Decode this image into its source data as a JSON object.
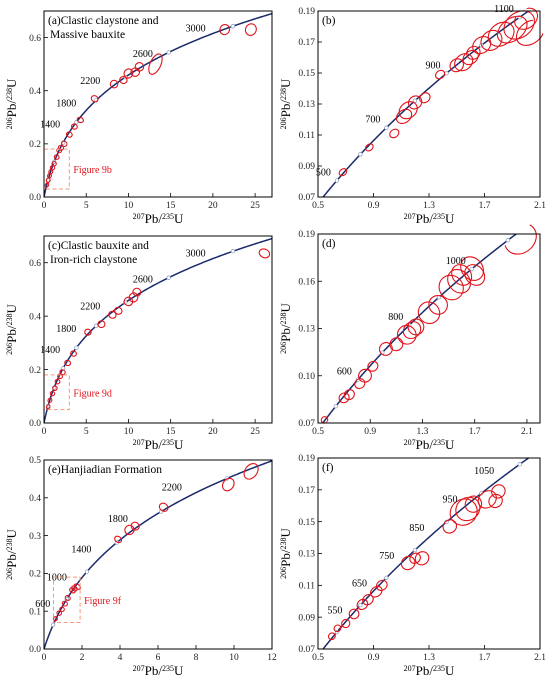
{
  "colors": {
    "concordia": "#1a2a6c",
    "ellipse": "#e0141c",
    "inset": "#f29a7a",
    "axis": "#000000",
    "marker": "#ffffff"
  },
  "chart_data": [
    {
      "type": "scatter",
      "id": "a",
      "title": "(a)Clastic claystone and",
      "title2": "Massive bauxite",
      "xlim": [
        0,
        27
      ],
      "ylim": [
        0,
        0.7
      ],
      "xticks": [
        0,
        5,
        10,
        15,
        20,
        25
      ],
      "yticks": [
        0.0,
        0.2,
        0.4,
        0.6
      ],
      "tick_labels_x": [
        "0",
        "5",
        "10",
        "15",
        "20",
        "25"
      ],
      "tick_labels_y": [
        "0.0",
        "0.2",
        "0.4",
        "0.6"
      ],
      "xlabel": "207Pb/235U",
      "ylabel": "206Pb/238U",
      "concordia_age_range": [
        0,
        3500
      ],
      "age_labels": [
        "1400",
        "1800",
        "2200",
        "2600",
        "3000"
      ],
      "inset_box": {
        "x": [
          0,
          3
        ],
        "y": [
          0.03,
          0.18
        ],
        "label": "Figure 9b"
      },
      "ellipses": [
        {
          "x": 0.35,
          "y": 0.045,
          "rx": 0.15,
          "ry": 0.006
        },
        {
          "x": 0.5,
          "y": 0.063,
          "rx": 0.16,
          "ry": 0.007
        },
        {
          "x": 0.65,
          "y": 0.08,
          "rx": 0.17,
          "ry": 0.007
        },
        {
          "x": 0.8,
          "y": 0.095,
          "rx": 0.18,
          "ry": 0.007
        },
        {
          "x": 1.0,
          "y": 0.11,
          "rx": 0.2,
          "ry": 0.008
        },
        {
          "x": 1.2,
          "y": 0.125,
          "rx": 0.22,
          "ry": 0.008
        },
        {
          "x": 1.5,
          "y": 0.15,
          "rx": 0.25,
          "ry": 0.009
        },
        {
          "x": 1.8,
          "y": 0.175,
          "rx": 0.25,
          "ry": 0.009
        },
        {
          "x": 2.0,
          "y": 0.185,
          "rx": 0.28,
          "ry": 0.01
        },
        {
          "x": 2.4,
          "y": 0.2,
          "rx": 0.3,
          "ry": 0.01
        },
        {
          "x": 3.0,
          "y": 0.235,
          "rx": 0.3,
          "ry": 0.011
        },
        {
          "x": 3.6,
          "y": 0.265,
          "rx": 0.3,
          "ry": 0.011
        },
        {
          "x": 4.3,
          "y": 0.29,
          "rx": 0.3,
          "ry": 0.012
        },
        {
          "x": 6.0,
          "y": 0.37,
          "rx": 0.35,
          "ry": 0.013
        },
        {
          "x": 8.3,
          "y": 0.425,
          "rx": 0.45,
          "ry": 0.014
        },
        {
          "x": 9.4,
          "y": 0.44,
          "rx": 0.4,
          "ry": 0.014
        },
        {
          "x": 10.0,
          "y": 0.465,
          "rx": 0.55,
          "ry": 0.016
        },
        {
          "x": 10.8,
          "y": 0.47,
          "rx": 0.5,
          "ry": 0.016
        },
        {
          "x": 11.3,
          "y": 0.49,
          "rx": 0.5,
          "ry": 0.016
        },
        {
          "x": 13.2,
          "y": 0.5,
          "rx": 1.3,
          "ry": 0.02
        },
        {
          "x": 21.4,
          "y": 0.63,
          "rx": 0.6,
          "ry": 0.018
        },
        {
          "x": 24.5,
          "y": 0.63,
          "rx": 0.7,
          "ry": 0.02
        }
      ]
    },
    {
      "type": "scatter",
      "id": "b",
      "title": "(b)",
      "title2": "",
      "xlim": [
        0.5,
        2.1
      ],
      "ylim": [
        0.07,
        0.19
      ],
      "xticks": [
        0.5,
        0.9,
        1.3,
        1.7,
        2.1
      ],
      "yticks": [
        0.07,
        0.09,
        0.11,
        0.13,
        0.15,
        0.17,
        0.19
      ],
      "tick_labels_x": [
        "0.5",
        "0.9",
        "1.3",
        "1.7",
        "2.1"
      ],
      "tick_labels_y": [
        "0.07",
        "0.09",
        "0.11",
        "0.13",
        "0.15",
        "0.17",
        "0.19"
      ],
      "xlabel": "207Pb/235U",
      "ylabel": "206Pb/238U",
      "concordia_age_range": [
        300,
        1250
      ],
      "age_labels": [
        "500",
        "700",
        "900",
        "1100"
      ],
      "ellipses": [
        {
          "x": 0.68,
          "y": 0.086,
          "rx": 0.03,
          "ry": 0.002
        },
        {
          "x": 0.87,
          "y": 0.102,
          "rx": 0.03,
          "ry": 0.002
        },
        {
          "x": 1.05,
          "y": 0.111,
          "rx": 0.035,
          "ry": 0.0025
        },
        {
          "x": 1.12,
          "y": 0.122,
          "rx": 0.06,
          "ry": 0.004
        },
        {
          "x": 1.15,
          "y": 0.126,
          "rx": 0.07,
          "ry": 0.005
        },
        {
          "x": 1.2,
          "y": 0.131,
          "rx": 0.05,
          "ry": 0.004
        },
        {
          "x": 1.27,
          "y": 0.134,
          "rx": 0.04,
          "ry": 0.003
        },
        {
          "x": 1.38,
          "y": 0.149,
          "rx": 0.035,
          "ry": 0.0025
        },
        {
          "x": 1.5,
          "y": 0.155,
          "rx": 0.05,
          "ry": 0.004
        },
        {
          "x": 1.55,
          "y": 0.157,
          "rx": 0.07,
          "ry": 0.005
        },
        {
          "x": 1.6,
          "y": 0.16,
          "rx": 0.06,
          "ry": 0.004
        },
        {
          "x": 1.62,
          "y": 0.163,
          "rx": 0.05,
          "ry": 0.004
        },
        {
          "x": 1.68,
          "y": 0.168,
          "rx": 0.07,
          "ry": 0.005
        },
        {
          "x": 1.75,
          "y": 0.171,
          "rx": 0.08,
          "ry": 0.006
        },
        {
          "x": 1.82,
          "y": 0.175,
          "rx": 0.1,
          "ry": 0.007
        },
        {
          "x": 1.9,
          "y": 0.178,
          "rx": 0.12,
          "ry": 0.007
        },
        {
          "x": 1.95,
          "y": 0.181,
          "rx": 0.12,
          "ry": 0.008
        },
        {
          "x": 2.03,
          "y": 0.176,
          "rx": 0.11,
          "ry": 0.007
        },
        {
          "x": 2.0,
          "y": 0.185,
          "rx": 0.09,
          "ry": 0.006
        }
      ]
    },
    {
      "type": "scatter",
      "id": "c",
      "title": "(c)Clastic bauxite and",
      "title2": "Iron-rich claystone",
      "xlim": [
        0,
        27
      ],
      "ylim": [
        0,
        0.7
      ],
      "xticks": [
        0,
        5,
        10,
        15,
        20,
        25
      ],
      "yticks": [
        0.0,
        0.2,
        0.4,
        0.6
      ],
      "tick_labels_x": [
        "0",
        "5",
        "10",
        "15",
        "20",
        "25"
      ],
      "tick_labels_y": [
        "0.0",
        "0.2",
        "0.4",
        "0.6"
      ],
      "xlabel": "207Pb/235U",
      "ylabel": "206Pb/238U",
      "concordia_age_range": [
        0,
        3500
      ],
      "age_labels": [
        "1400",
        "1800",
        "2200",
        "2600",
        "3000"
      ],
      "inset_box": {
        "x": [
          0,
          3
        ],
        "y": [
          0.05,
          0.18
        ],
        "label": "Figure 9d"
      },
      "ellipses": [
        {
          "x": 0.5,
          "y": 0.06,
          "rx": 0.15,
          "ry": 0.006
        },
        {
          "x": 0.7,
          "y": 0.085,
          "rx": 0.18,
          "ry": 0.007
        },
        {
          "x": 1.0,
          "y": 0.11,
          "rx": 0.2,
          "ry": 0.008
        },
        {
          "x": 1.3,
          "y": 0.13,
          "rx": 0.22,
          "ry": 0.008
        },
        {
          "x": 1.6,
          "y": 0.155,
          "rx": 0.25,
          "ry": 0.009
        },
        {
          "x": 1.9,
          "y": 0.175,
          "rx": 0.25,
          "ry": 0.009
        },
        {
          "x": 2.2,
          "y": 0.19,
          "rx": 0.28,
          "ry": 0.01
        },
        {
          "x": 2.8,
          "y": 0.225,
          "rx": 0.3,
          "ry": 0.011
        },
        {
          "x": 3.5,
          "y": 0.26,
          "rx": 0.3,
          "ry": 0.011
        },
        {
          "x": 5.2,
          "y": 0.34,
          "rx": 0.35,
          "ry": 0.012
        },
        {
          "x": 6.8,
          "y": 0.37,
          "rx": 0.4,
          "ry": 0.013
        },
        {
          "x": 8.1,
          "y": 0.405,
          "rx": 0.4,
          "ry": 0.014
        },
        {
          "x": 8.8,
          "y": 0.42,
          "rx": 0.4,
          "ry": 0.014
        },
        {
          "x": 10.0,
          "y": 0.455,
          "rx": 0.5,
          "ry": 0.016
        },
        {
          "x": 10.6,
          "y": 0.47,
          "rx": 0.55,
          "ry": 0.016
        },
        {
          "x": 11.0,
          "y": 0.49,
          "rx": 0.45,
          "ry": 0.015
        },
        {
          "x": 26.1,
          "y": 0.635,
          "rx": 0.5,
          "ry": 0.02
        }
      ]
    },
    {
      "type": "scatter",
      "id": "d",
      "title": "(d)",
      "title2": "",
      "xlim": [
        0.5,
        2.2
      ],
      "ylim": [
        0.07,
        0.19
      ],
      "xticks": [
        0.5,
        0.9,
        1.3,
        1.7,
        2.1
      ],
      "yticks": [
        0.07,
        0.1,
        0.13,
        0.16,
        0.19
      ],
      "tick_labels_x": [
        "0.5",
        "0.9",
        "1.3",
        "1.7",
        "2.1"
      ],
      "tick_labels_y": [
        "0.07",
        "0.10",
        "0.13",
        "0.16",
        "0.19"
      ],
      "xlabel": "207Pb/235U",
      "ylabel": "206Pb/238U",
      "concordia_age_range": [
        300,
        1250
      ],
      "age_labels": [
        "600",
        "800",
        "1000"
      ],
      "ellipses": [
        {
          "x": 0.55,
          "y": 0.072,
          "rx": 0.025,
          "ry": 0.002
        },
        {
          "x": 0.7,
          "y": 0.086,
          "rx": 0.04,
          "ry": 0.003
        },
        {
          "x": 0.74,
          "y": 0.088,
          "rx": 0.04,
          "ry": 0.003
        },
        {
          "x": 0.82,
          "y": 0.095,
          "rx": 0.04,
          "ry": 0.003
        },
        {
          "x": 0.86,
          "y": 0.1,
          "rx": 0.05,
          "ry": 0.004
        },
        {
          "x": 0.92,
          "y": 0.106,
          "rx": 0.04,
          "ry": 0.003
        },
        {
          "x": 1.02,
          "y": 0.117,
          "rx": 0.05,
          "ry": 0.004
        },
        {
          "x": 1.1,
          "y": 0.12,
          "rx": 0.05,
          "ry": 0.004
        },
        {
          "x": 1.18,
          "y": 0.126,
          "rx": 0.07,
          "ry": 0.006
        },
        {
          "x": 1.22,
          "y": 0.129,
          "rx": 0.07,
          "ry": 0.005
        },
        {
          "x": 1.25,
          "y": 0.131,
          "rx": 0.06,
          "ry": 0.005
        },
        {
          "x": 1.35,
          "y": 0.14,
          "rx": 0.08,
          "ry": 0.007
        },
        {
          "x": 1.42,
          "y": 0.145,
          "rx": 0.07,
          "ry": 0.006
        },
        {
          "x": 1.52,
          "y": 0.156,
          "rx": 0.09,
          "ry": 0.008
        },
        {
          "x": 1.58,
          "y": 0.16,
          "rx": 0.08,
          "ry": 0.008
        },
        {
          "x": 1.6,
          "y": 0.164,
          "rx": 0.07,
          "ry": 0.007
        },
        {
          "x": 1.68,
          "y": 0.168,
          "rx": 0.08,
          "ry": 0.008
        },
        {
          "x": 1.7,
          "y": 0.164,
          "rx": 0.07,
          "ry": 0.007
        },
        {
          "x": 2.05,
          "y": 0.187,
          "rx": 0.13,
          "ry": 0.009
        }
      ]
    },
    {
      "type": "scatter",
      "id": "e",
      "title": "(e)Hanjiadian Formation",
      "title2": "",
      "xlim": [
        0,
        12
      ],
      "ylim": [
        0,
        0.5
      ],
      "xticks": [
        0,
        2,
        4,
        6,
        8,
        10,
        12
      ],
      "yticks": [
        0.0,
        0.1,
        0.2,
        0.3,
        0.4,
        0.5
      ],
      "tick_labels_x": [
        "0",
        "2",
        "4",
        "6",
        "8",
        "10",
        "12"
      ],
      "tick_labels_y": [
        "0.0",
        "0.1",
        "0.2",
        "0.3",
        "0.4",
        "0.5"
      ],
      "xlabel": "207Pb/235U",
      "ylabel": "206Pb/238U",
      "concordia_age_range": [
        0,
        2700
      ],
      "age_labels": [
        "600",
        "1000",
        "1400",
        "1800",
        "2200"
      ],
      "inset_box": {
        "x": [
          0.5,
          1.9
        ],
        "y": [
          0.07,
          0.19
        ],
        "label": "Figure 9f"
      },
      "ellipses": [
        {
          "x": 0.6,
          "y": 0.08,
          "rx": 0.06,
          "ry": 0.005
        },
        {
          "x": 0.8,
          "y": 0.095,
          "rx": 0.08,
          "ry": 0.006
        },
        {
          "x": 0.95,
          "y": 0.105,
          "rx": 0.08,
          "ry": 0.006
        },
        {
          "x": 1.1,
          "y": 0.12,
          "rx": 0.09,
          "ry": 0.007
        },
        {
          "x": 1.25,
          "y": 0.135,
          "rx": 0.1,
          "ry": 0.007
        },
        {
          "x": 1.5,
          "y": 0.155,
          "rx": 0.12,
          "ry": 0.008
        },
        {
          "x": 1.6,
          "y": 0.16,
          "rx": 0.12,
          "ry": 0.008
        },
        {
          "x": 1.75,
          "y": 0.165,
          "rx": 0.12,
          "ry": 0.009
        },
        {
          "x": 3.9,
          "y": 0.29,
          "rx": 0.15,
          "ry": 0.01
        },
        {
          "x": 4.5,
          "y": 0.315,
          "rx": 0.25,
          "ry": 0.012
        },
        {
          "x": 4.8,
          "y": 0.325,
          "rx": 0.2,
          "ry": 0.011
        },
        {
          "x": 6.3,
          "y": 0.375,
          "rx": 0.2,
          "ry": 0.012
        },
        {
          "x": 9.7,
          "y": 0.435,
          "rx": 0.35,
          "ry": 0.014
        },
        {
          "x": 10.9,
          "y": 0.47,
          "rx": 0.45,
          "ry": 0.016
        }
      ]
    },
    {
      "type": "scatter",
      "id": "f",
      "title": "(f)",
      "title2": "",
      "xlim": [
        0.5,
        2.1
      ],
      "ylim": [
        0.07,
        0.19
      ],
      "xticks": [
        0.5,
        0.9,
        1.3,
        1.7,
        2.1
      ],
      "yticks": [
        0.07,
        0.09,
        0.11,
        0.13,
        0.15,
        0.17,
        0.19
      ],
      "tick_labels_x": [
        "0.5",
        "0.9",
        "1.3",
        "1.7",
        "2.1"
      ],
      "tick_labels_y": [
        "0.07",
        "0.09",
        "0.11",
        "0.13",
        "0.15",
        "0.17",
        "0.19"
      ],
      "xlabel": "207Pb/235U",
      "ylabel": "206Pb/238U",
      "concordia_age_range": [
        300,
        1250
      ],
      "age_labels": [
        "550",
        "650",
        "750",
        "850",
        "950",
        "1050"
      ],
      "ellipses": [
        {
          "x": 0.6,
          "y": 0.078,
          "rx": 0.025,
          "ry": 0.002
        },
        {
          "x": 0.64,
          "y": 0.083,
          "rx": 0.025,
          "ry": 0.002
        },
        {
          "x": 0.7,
          "y": 0.086,
          "rx": 0.03,
          "ry": 0.0025
        },
        {
          "x": 0.76,
          "y": 0.092,
          "rx": 0.035,
          "ry": 0.003
        },
        {
          "x": 0.82,
          "y": 0.098,
          "rx": 0.04,
          "ry": 0.003
        },
        {
          "x": 0.86,
          "y": 0.101,
          "rx": 0.04,
          "ry": 0.003
        },
        {
          "x": 0.92,
          "y": 0.106,
          "rx": 0.045,
          "ry": 0.003
        },
        {
          "x": 0.96,
          "y": 0.11,
          "rx": 0.04,
          "ry": 0.003
        },
        {
          "x": 1.15,
          "y": 0.124,
          "rx": 0.05,
          "ry": 0.004
        },
        {
          "x": 1.2,
          "y": 0.127,
          "rx": 0.04,
          "ry": 0.003
        },
        {
          "x": 1.25,
          "y": 0.127,
          "rx": 0.05,
          "ry": 0.004
        },
        {
          "x": 1.45,
          "y": 0.147,
          "rx": 0.05,
          "ry": 0.004
        },
        {
          "x": 1.55,
          "y": 0.156,
          "rx": 0.1,
          "ry": 0.008
        },
        {
          "x": 1.58,
          "y": 0.158,
          "rx": 0.09,
          "ry": 0.007
        },
        {
          "x": 1.62,
          "y": 0.161,
          "rx": 0.06,
          "ry": 0.005
        },
        {
          "x": 1.72,
          "y": 0.164,
          "rx": 0.07,
          "ry": 0.005
        },
        {
          "x": 1.8,
          "y": 0.169,
          "rx": 0.05,
          "ry": 0.004
        },
        {
          "x": 1.78,
          "y": 0.163,
          "rx": 0.05,
          "ry": 0.004
        }
      ]
    }
  ]
}
